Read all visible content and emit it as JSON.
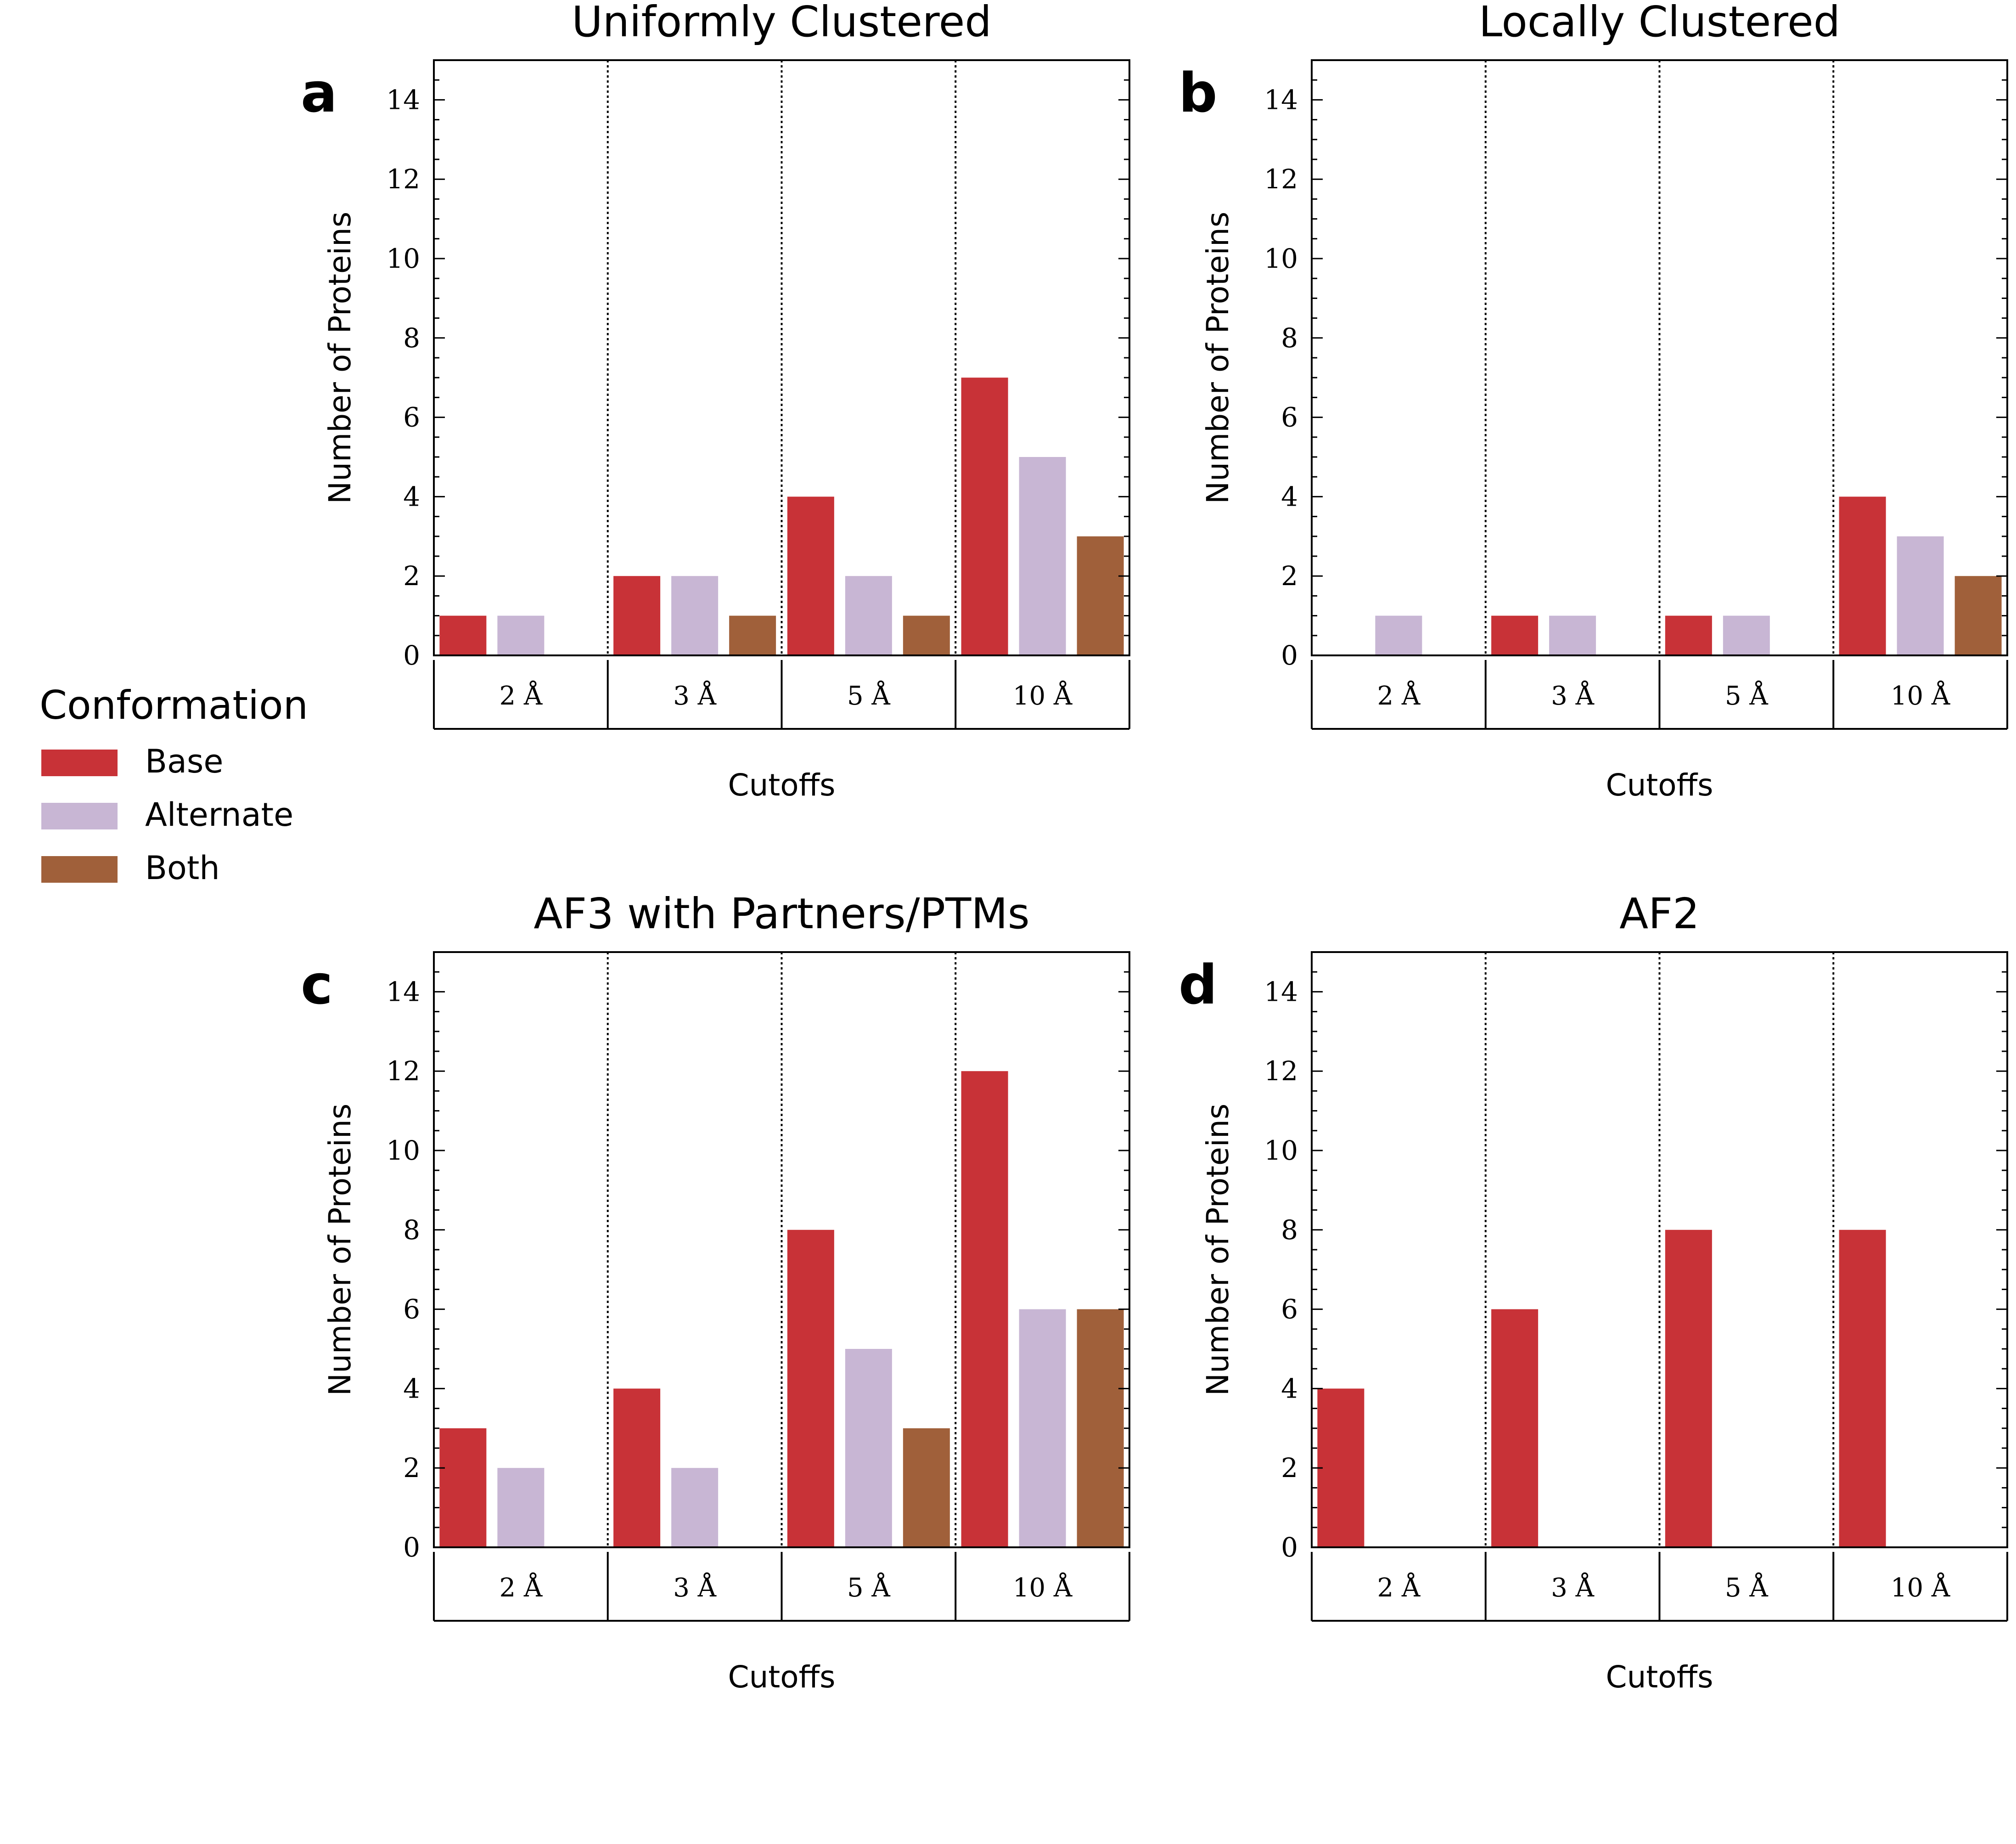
{
  "legend": {
    "title": "Conformation",
    "entries": [
      {
        "label": "Base",
        "color": "#c83237"
      },
      {
        "label": "Alternate",
        "color": "#c8b6d4"
      },
      {
        "label": "Both",
        "color": "#a0603a"
      }
    ]
  },
  "chart_data": [
    {
      "type": "bar",
      "letter": "a",
      "title": "Uniformly Clustered",
      "xlabel": "Cutoffs",
      "ylabel": "Number of Proteins",
      "ylim": [
        0,
        15
      ],
      "yticks": [
        0,
        2,
        4,
        6,
        8,
        10,
        12,
        14
      ],
      "categories": [
        "2 Å",
        "3 Å",
        "5 Å",
        "10 Å"
      ],
      "series": [
        {
          "name": "Base",
          "values": [
            1,
            2,
            4,
            7
          ]
        },
        {
          "name": "Alternate",
          "values": [
            1,
            2,
            2,
            5
          ]
        },
        {
          "name": "Both",
          "values": [
            0,
            1,
            1,
            3
          ]
        }
      ]
    },
    {
      "type": "bar",
      "letter": "b",
      "title": "Locally Clustered",
      "xlabel": "Cutoffs",
      "ylabel": "Number of Proteins",
      "ylim": [
        0,
        15
      ],
      "yticks": [
        0,
        2,
        4,
        6,
        8,
        10,
        12,
        14
      ],
      "categories": [
        "2 Å",
        "3 Å",
        "5 Å",
        "10 Å"
      ],
      "series": [
        {
          "name": "Base",
          "values": [
            0,
            1,
            1,
            4
          ]
        },
        {
          "name": "Alternate",
          "values": [
            1,
            1,
            1,
            3
          ]
        },
        {
          "name": "Both",
          "values": [
            0,
            0,
            0,
            2
          ]
        }
      ]
    },
    {
      "type": "bar",
      "letter": "c",
      "title": "AF3 with Partners/PTMs",
      "xlabel": "Cutoffs",
      "ylabel": "Number of Proteins",
      "ylim": [
        0,
        15
      ],
      "yticks": [
        0,
        2,
        4,
        6,
        8,
        10,
        12,
        14
      ],
      "categories": [
        "2 Å",
        "3 Å",
        "5 Å",
        "10 Å"
      ],
      "series": [
        {
          "name": "Base",
          "values": [
            3,
            4,
            8,
            12
          ]
        },
        {
          "name": "Alternate",
          "values": [
            2,
            2,
            5,
            6
          ]
        },
        {
          "name": "Both",
          "values": [
            0,
            0,
            3,
            6
          ]
        }
      ]
    },
    {
      "type": "bar",
      "letter": "d",
      "title": "AF2",
      "xlabel": "Cutoffs",
      "ylabel": "Number of Proteins",
      "ylim": [
        0,
        15
      ],
      "yticks": [
        0,
        2,
        4,
        6,
        8,
        10,
        12,
        14
      ],
      "categories": [
        "2 Å",
        "3 Å",
        "5 Å",
        "10 Å"
      ],
      "series": [
        {
          "name": "Base",
          "values": [
            4,
            6,
            8,
            8
          ]
        },
        {
          "name": "Alternate",
          "values": [
            0,
            0,
            0,
            0
          ]
        },
        {
          "name": "Both",
          "values": [
            0,
            0,
            0,
            0
          ]
        }
      ]
    }
  ]
}
